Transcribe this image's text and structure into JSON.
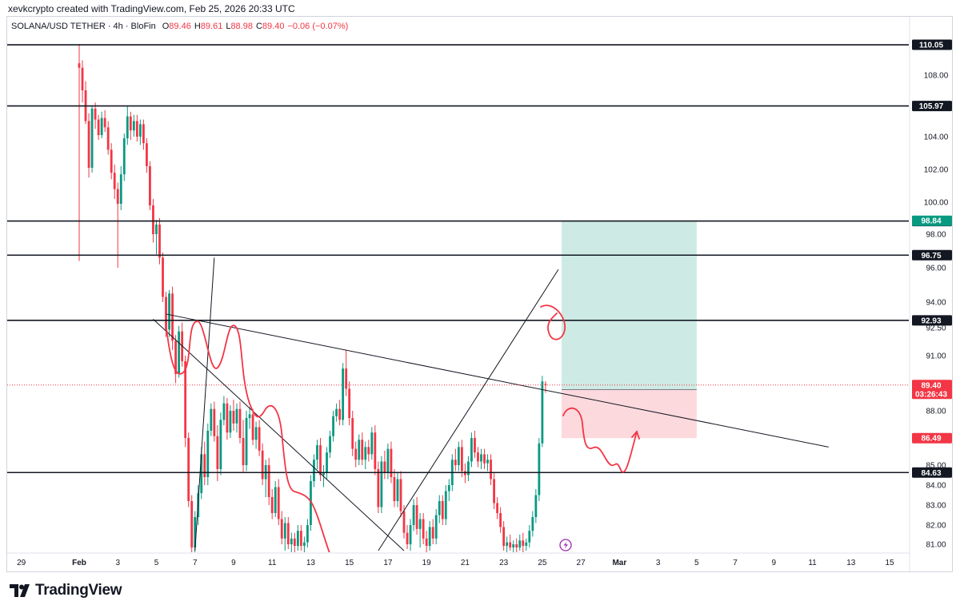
{
  "credit": "xevkcrypto created with TradingView.com, Feb 25, 2026 20:33 UTC",
  "legend": {
    "symbol": "SOLANA/USD TETHER · 4h · BloFin",
    "o_label": "O",
    "o": "89.46",
    "h_label": "H",
    "h": "89.61",
    "l_label": "L",
    "l": "88.98",
    "c_label": "C",
    "c": "89.40",
    "change": "−0.06 (−0.07%)"
  },
  "logo_text": "TradingView",
  "colors": {
    "up": "#089981",
    "down": "#f23645",
    "profit": "#cdebe4",
    "loss": "#fcd9dd",
    "drawing": "#f23645"
  },
  "chart_data": {
    "type": "candlestick",
    "y_ticks": [
      "81.00",
      "82.00",
      "83.00",
      "84.00",
      "85.00",
      "88.00",
      "91.00",
      "92.50",
      "94.00",
      "96.00",
      "98.00",
      "100.00",
      "102.00",
      "104.00",
      "106.00",
      "108.00"
    ],
    "x_ticks": [
      {
        "label": "29",
        "idx": -18
      },
      {
        "label": "Feb",
        "idx": 0
      },
      {
        "label": "3",
        "idx": 12
      },
      {
        "label": "5",
        "idx": 24
      },
      {
        "label": "7",
        "idx": 36
      },
      {
        "label": "9",
        "idx": 48
      },
      {
        "label": "11",
        "idx": 60
      },
      {
        "label": "13",
        "idx": 72
      },
      {
        "label": "15",
        "idx": 84
      },
      {
        "label": "17",
        "idx": 96
      },
      {
        "label": "19",
        "idx": 108
      },
      {
        "label": "21",
        "idx": 120
      },
      {
        "label": "23",
        "idx": 132
      },
      {
        "label": "25",
        "idx": 144
      },
      {
        "label": "27",
        "idx": 156
      },
      {
        "label": "Mar",
        "idx": 168
      },
      {
        "label": "3",
        "idx": 180
      },
      {
        "label": "5",
        "idx": 192
      },
      {
        "label": "7",
        "idx": 204
      },
      {
        "label": "9",
        "idx": 216
      },
      {
        "label": "11",
        "idx": 228
      },
      {
        "label": "13",
        "idx": 240
      },
      {
        "label": "15",
        "idx": 252
      }
    ],
    "levels": [
      {
        "value": 110.05,
        "label": "110.05"
      },
      {
        "value": 105.97,
        "label": "105.97"
      },
      {
        "value": 98.82,
        "label": "98.82"
      },
      {
        "value": 96.75,
        "label": "96.75"
      },
      {
        "value": 92.93,
        "label": "92.93"
      },
      {
        "value": 84.63,
        "label": "84.63"
      }
    ],
    "price_tags": [
      {
        "label": "98.84",
        "value": 98.84,
        "color": "#089981"
      },
      {
        "label": "89.15",
        "value": 89.15,
        "color": "#787b86"
      },
      {
        "label": "86.49",
        "value": 86.49,
        "color": "#f23645"
      }
    ],
    "last_price": {
      "value": 89.4,
      "label": "89.40",
      "countdown": "03:26:43"
    },
    "position": {
      "entry": 89.15,
      "target": 98.84,
      "stop": 86.49,
      "start_idx": 150,
      "end_idx": 192
    },
    "trendlines": [
      {
        "from": {
          "idx": 27,
          "price": 93.3
        },
        "to": {
          "idx": 233,
          "price": 86.0
        }
      },
      {
        "from": {
          "idx": 36,
          "price": 80.6
        },
        "to": {
          "idx": 42,
          "price": 96.6
        }
      },
      {
        "from": {
          "idx": 23,
          "price": 93.0
        },
        "to": {
          "idx": 101,
          "price": 80.6
        }
      },
      {
        "from": {
          "idx": 93,
          "price": 80.6
        },
        "to": {
          "idx": 149,
          "price": 95.9
        }
      }
    ],
    "candles_4h": [
      {
        "o": 108.8,
        "h": 110.1,
        "l": 96.4,
        "c": 108.5
      },
      {
        "o": 108.5,
        "h": 109.0,
        "l": 106.2,
        "c": 107.0
      },
      {
        "o": 107.0,
        "h": 107.6,
        "l": 104.8,
        "c": 105.0
      },
      {
        "o": 105.0,
        "h": 105.5,
        "l": 101.5,
        "c": 102.1
      },
      {
        "o": 102.1,
        "h": 106.0,
        "l": 101.8,
        "c": 105.8
      },
      {
        "o": 105.8,
        "h": 106.2,
        "l": 104.5,
        "c": 105.1
      },
      {
        "o": 105.1,
        "h": 105.4,
        "l": 103.8,
        "c": 104.1
      },
      {
        "o": 104.1,
        "h": 105.6,
        "l": 103.9,
        "c": 105.2
      },
      {
        "o": 105.2,
        "h": 105.7,
        "l": 104.3,
        "c": 104.6
      },
      {
        "o": 104.6,
        "h": 105.0,
        "l": 102.9,
        "c": 103.2
      },
      {
        "o": 103.2,
        "h": 103.6,
        "l": 101.4,
        "c": 101.8
      },
      {
        "o": 101.8,
        "h": 102.3,
        "l": 100.2,
        "c": 100.8
      },
      {
        "o": 100.8,
        "h": 101.2,
        "l": 96.0,
        "c": 99.9
      },
      {
        "o": 99.9,
        "h": 102.2,
        "l": 99.5,
        "c": 101.7
      },
      {
        "o": 101.7,
        "h": 104.2,
        "l": 101.3,
        "c": 103.9
      },
      {
        "o": 103.9,
        "h": 106.0,
        "l": 103.5,
        "c": 105.3
      },
      {
        "o": 105.3,
        "h": 105.6,
        "l": 103.8,
        "c": 104.4
      },
      {
        "o": 104.4,
        "h": 105.4,
        "l": 104.0,
        "c": 105.0
      },
      {
        "o": 105.0,
        "h": 105.4,
        "l": 103.7,
        "c": 104.0
      },
      {
        "o": 104.0,
        "h": 105.1,
        "l": 103.5,
        "c": 104.8
      },
      {
        "o": 104.8,
        "h": 105.1,
        "l": 103.2,
        "c": 103.6
      },
      {
        "o": 103.6,
        "h": 103.9,
        "l": 101.8,
        "c": 102.2
      },
      {
        "o": 102.2,
        "h": 102.5,
        "l": 99.5,
        "c": 99.8
      },
      {
        "o": 99.8,
        "h": 100.2,
        "l": 97.5,
        "c": 98.0
      },
      {
        "o": 98.0,
        "h": 98.9,
        "l": 96.8,
        "c": 98.6
      },
      {
        "o": 98.6,
        "h": 99.0,
        "l": 96.2,
        "c": 96.6
      },
      {
        "o": 96.6,
        "h": 96.9,
        "l": 94.0,
        "c": 94.3
      },
      {
        "o": 94.3,
        "h": 94.6,
        "l": 92.0,
        "c": 92.4
      },
      {
        "o": 92.4,
        "h": 94.7,
        "l": 92.0,
        "c": 94.5
      },
      {
        "o": 94.5,
        "h": 94.9,
        "l": 91.3,
        "c": 91.8
      },
      {
        "o": 91.8,
        "h": 92.1,
        "l": 89.5,
        "c": 90.0
      },
      {
        "o": 90.0,
        "h": 92.6,
        "l": 89.8,
        "c": 92.3
      },
      {
        "o": 92.3,
        "h": 92.8,
        "l": 90.4,
        "c": 90.7
      },
      {
        "o": 90.7,
        "h": 91.0,
        "l": 86.0,
        "c": 86.5
      },
      {
        "o": 86.5,
        "h": 86.8,
        "l": 82.9,
        "c": 83.2
      },
      {
        "o": 83.2,
        "h": 83.5,
        "l": 80.4,
        "c": 80.8
      },
      {
        "o": 80.8,
        "h": 82.7,
        "l": 80.5,
        "c": 82.4
      },
      {
        "o": 82.4,
        "h": 84.0,
        "l": 82.0,
        "c": 83.6
      },
      {
        "o": 83.6,
        "h": 86.0,
        "l": 83.3,
        "c": 85.6
      },
      {
        "o": 85.6,
        "h": 86.3,
        "l": 84.0,
        "c": 84.4
      },
      {
        "o": 84.4,
        "h": 87.3,
        "l": 84.0,
        "c": 86.9
      },
      {
        "o": 86.9,
        "h": 88.4,
        "l": 86.6,
        "c": 88.1
      },
      {
        "o": 88.1,
        "h": 88.5,
        "l": 86.3,
        "c": 86.6
      },
      {
        "o": 86.6,
        "h": 87.2,
        "l": 84.2,
        "c": 84.8
      },
      {
        "o": 84.8,
        "h": 87.9,
        "l": 84.5,
        "c": 87.5
      },
      {
        "o": 87.5,
        "h": 88.8,
        "l": 87.2,
        "c": 88.4
      },
      {
        "o": 88.4,
        "h": 88.7,
        "l": 86.4,
        "c": 86.8
      },
      {
        "o": 86.8,
        "h": 88.3,
        "l": 86.5,
        "c": 88.0
      },
      {
        "o": 88.0,
        "h": 88.6,
        "l": 86.9,
        "c": 87.3
      },
      {
        "o": 87.3,
        "h": 88.4,
        "l": 86.8,
        "c": 88.1
      },
      {
        "o": 88.1,
        "h": 88.5,
        "l": 86.2,
        "c": 86.5
      },
      {
        "o": 86.5,
        "h": 87.5,
        "l": 84.6,
        "c": 85.0
      },
      {
        "o": 85.0,
        "h": 88.0,
        "l": 84.7,
        "c": 87.6
      },
      {
        "o": 87.6,
        "h": 88.2,
        "l": 87.0,
        "c": 87.8
      },
      {
        "o": 87.8,
        "h": 88.1,
        "l": 86.1,
        "c": 86.4
      },
      {
        "o": 86.4,
        "h": 87.4,
        "l": 85.9,
        "c": 87.1
      },
      {
        "o": 87.1,
        "h": 87.5,
        "l": 85.5,
        "c": 85.8
      },
      {
        "o": 85.8,
        "h": 86.2,
        "l": 84.0,
        "c": 84.3
      },
      {
        "o": 84.3,
        "h": 85.3,
        "l": 83.4,
        "c": 85.0
      },
      {
        "o": 85.0,
        "h": 85.4,
        "l": 83.0,
        "c": 83.4
      },
      {
        "o": 83.4,
        "h": 83.8,
        "l": 82.3,
        "c": 82.6
      },
      {
        "o": 82.6,
        "h": 84.2,
        "l": 82.4,
        "c": 83.9
      },
      {
        "o": 83.9,
        "h": 84.3,
        "l": 82.0,
        "c": 82.3
      },
      {
        "o": 82.3,
        "h": 82.7,
        "l": 81.0,
        "c": 81.3
      },
      {
        "o": 81.3,
        "h": 82.4,
        "l": 80.6,
        "c": 82.1
      },
      {
        "o": 82.1,
        "h": 82.4,
        "l": 80.7,
        "c": 81.0
      },
      {
        "o": 81.0,
        "h": 81.6,
        "l": 80.5,
        "c": 81.3
      },
      {
        "o": 81.3,
        "h": 81.6,
        "l": 80.5,
        "c": 80.9
      },
      {
        "o": 80.9,
        "h": 82.0,
        "l": 80.6,
        "c": 81.7
      },
      {
        "o": 81.7,
        "h": 82.0,
        "l": 80.6,
        "c": 80.9
      },
      {
        "o": 80.9,
        "h": 81.4,
        "l": 80.5,
        "c": 81.1
      },
      {
        "o": 81.1,
        "h": 82.3,
        "l": 80.8,
        "c": 82.0
      },
      {
        "o": 82.0,
        "h": 84.5,
        "l": 81.7,
        "c": 84.2
      },
      {
        "o": 84.2,
        "h": 85.6,
        "l": 83.9,
        "c": 85.3
      },
      {
        "o": 85.3,
        "h": 86.4,
        "l": 84.8,
        "c": 86.1
      },
      {
        "o": 86.1,
        "h": 86.5,
        "l": 84.2,
        "c": 84.5
      },
      {
        "o": 84.5,
        "h": 85.0,
        "l": 83.9,
        "c": 84.6
      },
      {
        "o": 84.6,
        "h": 86.0,
        "l": 84.3,
        "c": 85.7
      },
      {
        "o": 85.7,
        "h": 86.9,
        "l": 85.4,
        "c": 86.6
      },
      {
        "o": 86.6,
        "h": 88.0,
        "l": 86.3,
        "c": 87.7
      },
      {
        "o": 87.7,
        "h": 88.4,
        "l": 87.4,
        "c": 88.1
      },
      {
        "o": 88.1,
        "h": 88.6,
        "l": 87.2,
        "c": 87.5
      },
      {
        "o": 87.5,
        "h": 90.6,
        "l": 87.2,
        "c": 90.3
      },
      {
        "o": 90.3,
        "h": 91.3,
        "l": 88.8,
        "c": 89.2
      },
      {
        "o": 89.2,
        "h": 89.6,
        "l": 87.2,
        "c": 87.6
      },
      {
        "o": 87.6,
        "h": 88.0,
        "l": 85.5,
        "c": 85.9
      },
      {
        "o": 85.9,
        "h": 86.3,
        "l": 84.9,
        "c": 85.3
      },
      {
        "o": 85.3,
        "h": 86.7,
        "l": 85.0,
        "c": 86.4
      },
      {
        "o": 86.4,
        "h": 86.8,
        "l": 85.0,
        "c": 85.3
      },
      {
        "o": 85.3,
        "h": 86.3,
        "l": 84.8,
        "c": 86.0
      },
      {
        "o": 86.0,
        "h": 86.4,
        "l": 85.2,
        "c": 85.6
      },
      {
        "o": 85.6,
        "h": 87.1,
        "l": 85.3,
        "c": 86.8
      },
      {
        "o": 86.8,
        "h": 87.2,
        "l": 84.5,
        "c": 84.8
      },
      {
        "o": 84.8,
        "h": 85.2,
        "l": 82.6,
        "c": 82.9
      },
      {
        "o": 82.9,
        "h": 85.5,
        "l": 82.6,
        "c": 85.2
      },
      {
        "o": 85.2,
        "h": 85.8,
        "l": 84.3,
        "c": 84.6
      },
      {
        "o": 84.6,
        "h": 86.2,
        "l": 84.3,
        "c": 85.9
      },
      {
        "o": 85.9,
        "h": 86.3,
        "l": 84.1,
        "c": 84.4
      },
      {
        "o": 84.4,
        "h": 84.8,
        "l": 82.9,
        "c": 83.2
      },
      {
        "o": 83.2,
        "h": 84.6,
        "l": 82.9,
        "c": 84.3
      },
      {
        "o": 84.3,
        "h": 84.7,
        "l": 82.4,
        "c": 82.7
      },
      {
        "o": 82.7,
        "h": 83.0,
        "l": 81.3,
        "c": 81.6
      },
      {
        "o": 81.6,
        "h": 82.0,
        "l": 80.7,
        "c": 81.0
      },
      {
        "o": 81.0,
        "h": 82.3,
        "l": 80.6,
        "c": 82.0
      },
      {
        "o": 82.0,
        "h": 83.3,
        "l": 81.7,
        "c": 83.0
      },
      {
        "o": 83.0,
        "h": 83.4,
        "l": 81.5,
        "c": 81.8
      },
      {
        "o": 81.8,
        "h": 82.6,
        "l": 80.8,
        "c": 82.3
      },
      {
        "o": 82.3,
        "h": 82.6,
        "l": 81.0,
        "c": 81.3
      },
      {
        "o": 81.3,
        "h": 81.7,
        "l": 80.5,
        "c": 80.9
      },
      {
        "o": 80.9,
        "h": 82.2,
        "l": 80.6,
        "c": 81.9
      },
      {
        "o": 81.9,
        "h": 82.3,
        "l": 81.0,
        "c": 81.3
      },
      {
        "o": 81.3,
        "h": 82.8,
        "l": 81.0,
        "c": 82.5
      },
      {
        "o": 82.5,
        "h": 83.5,
        "l": 82.1,
        "c": 83.2
      },
      {
        "o": 83.2,
        "h": 83.5,
        "l": 82.0,
        "c": 82.3
      },
      {
        "o": 82.3,
        "h": 84.0,
        "l": 82.0,
        "c": 83.7
      },
      {
        "o": 83.7,
        "h": 84.3,
        "l": 83.2,
        "c": 84.0
      },
      {
        "o": 84.0,
        "h": 85.6,
        "l": 83.7,
        "c": 85.3
      },
      {
        "o": 85.3,
        "h": 85.9,
        "l": 84.7,
        "c": 85.0
      },
      {
        "o": 85.0,
        "h": 86.3,
        "l": 84.7,
        "c": 86.0
      },
      {
        "o": 86.0,
        "h": 86.4,
        "l": 84.4,
        "c": 84.7
      },
      {
        "o": 84.7,
        "h": 85.1,
        "l": 84.1,
        "c": 84.5
      },
      {
        "o": 84.5,
        "h": 85.5,
        "l": 84.2,
        "c": 85.2
      },
      {
        "o": 85.2,
        "h": 86.8,
        "l": 84.9,
        "c": 86.5
      },
      {
        "o": 86.5,
        "h": 86.9,
        "l": 85.4,
        "c": 85.7
      },
      {
        "o": 85.7,
        "h": 86.0,
        "l": 84.9,
        "c": 85.2
      },
      {
        "o": 85.2,
        "h": 85.9,
        "l": 84.8,
        "c": 85.6
      },
      {
        "o": 85.6,
        "h": 85.9,
        "l": 84.8,
        "c": 85.1
      },
      {
        "o": 85.1,
        "h": 85.6,
        "l": 84.7,
        "c": 85.3
      },
      {
        "o": 85.3,
        "h": 85.6,
        "l": 84.0,
        "c": 84.3
      },
      {
        "o": 84.3,
        "h": 84.6,
        "l": 82.8,
        "c": 83.1
      },
      {
        "o": 83.1,
        "h": 83.4,
        "l": 82.3,
        "c": 82.6
      },
      {
        "o": 82.6,
        "h": 82.9,
        "l": 81.6,
        "c": 81.9
      },
      {
        "o": 81.9,
        "h": 82.2,
        "l": 80.6,
        "c": 80.9
      },
      {
        "o": 80.9,
        "h": 81.4,
        "l": 80.5,
        "c": 81.1
      },
      {
        "o": 81.1,
        "h": 81.5,
        "l": 80.6,
        "c": 80.8
      },
      {
        "o": 80.8,
        "h": 81.2,
        "l": 80.5,
        "c": 81.0
      },
      {
        "o": 81.0,
        "h": 81.3,
        "l": 80.5,
        "c": 80.8
      },
      {
        "o": 80.8,
        "h": 81.5,
        "l": 80.6,
        "c": 81.2
      },
      {
        "o": 81.2,
        "h": 81.6,
        "l": 80.5,
        "c": 80.9
      },
      {
        "o": 80.9,
        "h": 81.3,
        "l": 80.6,
        "c": 81.1
      },
      {
        "o": 81.1,
        "h": 82.0,
        "l": 80.8,
        "c": 81.7
      },
      {
        "o": 81.7,
        "h": 82.7,
        "l": 81.4,
        "c": 82.4
      },
      {
        "o": 82.4,
        "h": 83.8,
        "l": 82.1,
        "c": 83.5
      },
      {
        "o": 83.5,
        "h": 86.5,
        "l": 83.2,
        "c": 86.2
      },
      {
        "o": 86.2,
        "h": 89.9,
        "l": 86.0,
        "c": 89.6
      },
      {
        "o": 89.46,
        "h": 89.61,
        "l": 88.98,
        "c": 89.4
      }
    ]
  }
}
